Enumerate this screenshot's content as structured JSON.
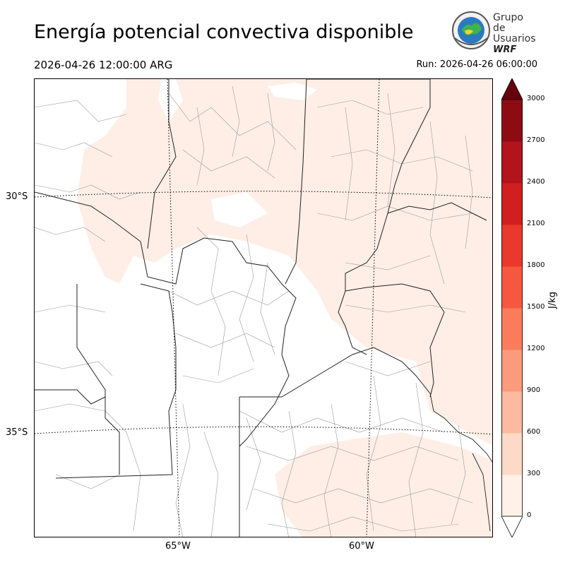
{
  "header": {
    "title": "Energía potencial convectiva disponible",
    "valid_time": "2026-04-26 12:00:00 ARG",
    "run": "Run: 2026-04-26 06:00:00"
  },
  "logo": {
    "line1": "Grupo de",
    "line2": "Usuarios",
    "line3": "WRF"
  },
  "map": {
    "lat_labels": [
      "30°S",
      "35°S"
    ],
    "lon_labels": [
      "65°W",
      "60°W"
    ]
  },
  "colorbar": {
    "unit": "J/kg",
    "ticks": [
      "0",
      "300",
      "600",
      "900",
      "1200",
      "1500",
      "1800",
      "2100",
      "2400",
      "2700",
      "3000"
    ],
    "colors": [
      "#fff0e8",
      "#fdd9c8",
      "#fcbba1",
      "#fc9b7c",
      "#fb7c5c",
      "#f6583f",
      "#eb382c",
      "#d11f20",
      "#b2141b",
      "#8e0b14",
      "#6a000d"
    ],
    "over_color": "#67000d"
  }
}
